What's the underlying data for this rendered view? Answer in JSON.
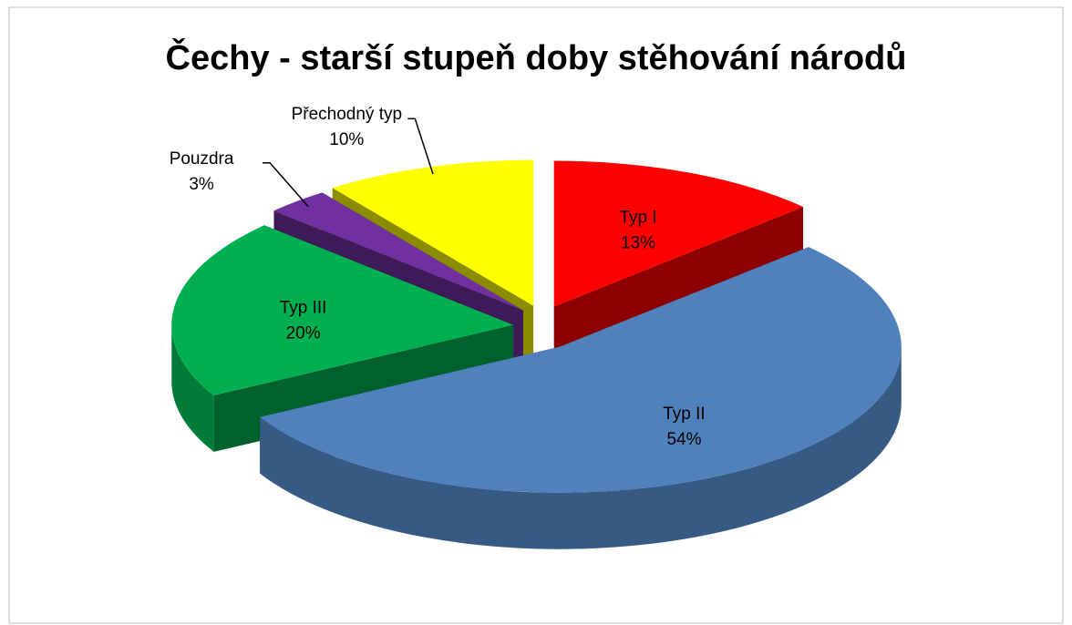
{
  "chart_data": {
    "type": "pie",
    "title": "Čechy - starší stupeň doby stěhování národů",
    "categories": [
      "Typ I",
      "Typ II",
      "Typ III",
      "Pouzdra",
      "Přechodný typ"
    ],
    "values": [
      13,
      54,
      20,
      3,
      10
    ],
    "value_labels": [
      "13%",
      "54%",
      "20%",
      "3%",
      "10%"
    ],
    "colors": [
      "#ff0000",
      "#4f81bd",
      "#00b050",
      "#7030a0",
      "#ffff00"
    ]
  }
}
